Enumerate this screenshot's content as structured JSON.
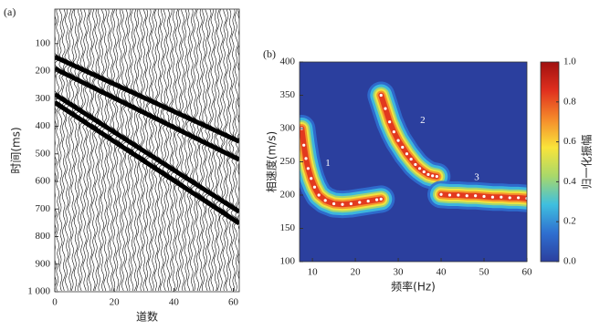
{
  "chart_data": [
    {
      "type": "wiggle",
      "panel_label": "(a)",
      "ylabel": "时间(ms)",
      "xlabel": "道数",
      "xlim": [
        0,
        62
      ],
      "ylim": [
        -25,
        1000
      ],
      "y_inverted": true,
      "xticks": [
        0,
        20,
        40,
        60
      ],
      "yticks": [
        100,
        200,
        300,
        400,
        500,
        600,
        700,
        800,
        900,
        {
          "value": 1000,
          "label": "1 000"
        }
      ],
      "series": [
        {
          "color": "#000000",
          "x": [
            0,
            62
          ],
          "values": [
            148,
            455
          ]
        },
        {
          "color": "#000000",
          "x": [
            0,
            62
          ],
          "values": [
            191,
            521
          ]
        },
        {
          "color": "#000000",
          "x": [
            0,
            62
          ],
          "values": [
            284,
            710
          ]
        },
        {
          "color": "#000000",
          "x": [
            0,
            62
          ],
          "values": [
            314,
            752
          ]
        }
      ]
    },
    {
      "type": "dispersion",
      "panel_label": "(b)",
      "xlabel": "频率(Hz)",
      "ylabel": "相速度(m/s)",
      "xlim": [
        7,
        60
      ],
      "ylim": [
        100,
        400
      ],
      "xticks": [
        10,
        20,
        30,
        40,
        50,
        60
      ],
      "yticks": [
        100,
        150,
        200,
        250,
        300,
        350,
        400
      ],
      "colorbar_label": "归一化振幅",
      "colorbar_lim": [
        0,
        1
      ],
      "colorbar_ticks": [
        {
          "value": 0,
          "label": "0.0"
        },
        0.2,
        0.4,
        0.6,
        0.8,
        {
          "value": 1,
          "label": "1.0"
        }
      ],
      "colorscale": [
        "#2b3f9e",
        "#2f6fd0",
        "#3fbfdf",
        "#a8d86a",
        "#f9e43a",
        "#f58a2b",
        "#e0301e",
        "#a01010"
      ],
      "series": [
        {
          "color": "#ffffff",
          "x": [
            7.5,
            8,
            8.5,
            9,
            9.7,
            10.5,
            11.5,
            13,
            15,
            17,
            19,
            21,
            23,
            25,
            26
          ],
          "values": [
            300,
            275,
            255,
            240,
            225,
            212,
            200,
            192,
            187,
            186,
            187,
            189,
            191,
            193,
            194
          ]
        },
        {
          "color": "#ffffff",
          "x": [
            26,
            27,
            28,
            29,
            30,
            31,
            32,
            33,
            34,
            35,
            36,
            37,
            38,
            39
          ],
          "values": [
            350,
            330,
            310,
            295,
            282,
            272,
            262,
            254,
            246,
            240,
            235,
            231,
            229,
            228
          ]
        },
        {
          "color": "#ffffff",
          "x": [
            40,
            42,
            44,
            46,
            48,
            50,
            52,
            54,
            56,
            58,
            60
          ],
          "values": [
            201,
            200,
            200,
            199,
            199,
            198,
            197,
            197,
            196,
            196,
            195
          ]
        }
      ],
      "annotations": [
        {
          "text": "1",
          "x": 13.6,
          "y": 247
        },
        {
          "text": "2",
          "x": 35.7,
          "y": 312
        },
        {
          "text": "3",
          "x": 48.3,
          "y": 226
        }
      ]
    }
  ]
}
